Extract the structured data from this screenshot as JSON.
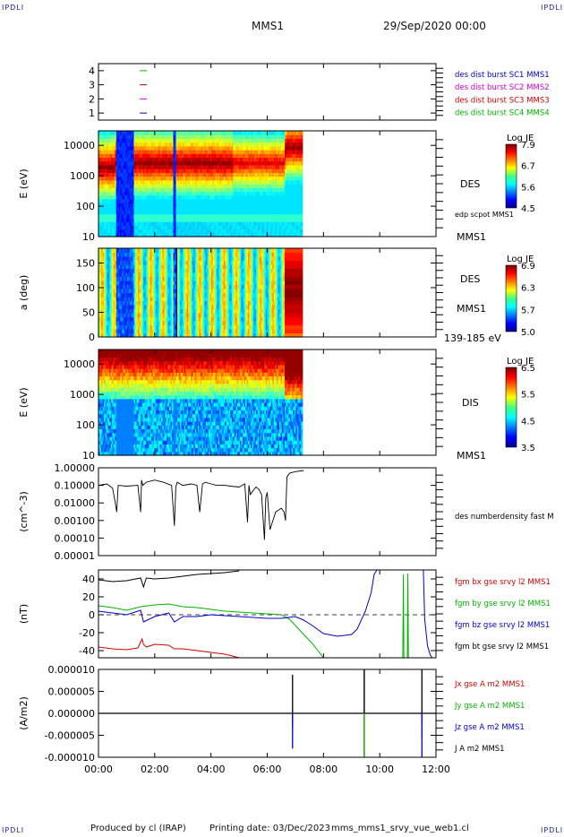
{
  "corner_labels": [
    "IPDLI",
    "IPDLI",
    "IPDLI",
    "IPDLI"
  ],
  "header": {
    "spacecraft": "MMS1",
    "date": "29/Sep/2020 00:00"
  },
  "footer": {
    "produced": "Produced by cl (IRAP)",
    "printed": "Printing date: 03/Dec/2023",
    "file": "mms_mms1_srvy_vue_web1.cl"
  },
  "time_axis": {
    "labels": [
      "00:00",
      "02:00",
      "04:00",
      "06:00",
      "08:00",
      "10:00",
      "12:00"
    ],
    "start_h": 0,
    "end_h": 12
  },
  "colors": {
    "red": "#d40000",
    "green": "#00b400",
    "blue": "#0000cc",
    "magenta": "#d400d4",
    "black": "#000000",
    "dashed": "#000000"
  },
  "chart_data": [
    {
      "type": "scatter",
      "panel": "burst",
      "ylim": [
        0.5,
        4.5
      ],
      "yticks": [
        "1",
        "2",
        "3",
        "4"
      ],
      "legend": [
        "des dist burst SC1 MMS1",
        "des dist burst SC2 MMS2",
        "des dist burst SC3 MMS3",
        "des dist burst SC4 MMS4"
      ],
      "legend_colors": [
        "#0000cc",
        "#d400d4",
        "#d40000",
        "#00b400"
      ],
      "series": [
        {
          "color": "#0000cc",
          "values": [
            {
              "x0": 1.47,
              "x1": 1.72,
              "y": 1
            }
          ]
        },
        {
          "color": "#d400d4",
          "values": [
            {
              "x0": 1.47,
              "x1": 1.72,
              "y": 2
            }
          ]
        },
        {
          "color": "#d40000",
          "values": [
            {
              "x0": 1.47,
              "x1": 1.72,
              "y": 3
            }
          ]
        },
        {
          "color": "#00b400",
          "values": [
            {
              "x0": 1.47,
              "x1": 1.72,
              "y": 4
            }
          ]
        }
      ]
    },
    {
      "type": "heatmap",
      "panel": "des_energy",
      "ylabel": "E (eV)",
      "yscale": "log",
      "ylim": [
        10,
        30000
      ],
      "yticks": [
        "10",
        "100",
        "1000",
        "10000"
      ],
      "right_labels": [
        "DES",
        "edp scpot MMS1",
        "MMS1"
      ],
      "colorbar": {
        "title": "Log JE",
        "ticks": [
          "7.9",
          "6.7",
          "5.6",
          "4.5"
        ],
        "min": 4.5,
        "max": 7.9
      },
      "data_x_range": [
        0,
        7.25
      ]
    },
    {
      "type": "heatmap",
      "panel": "des_pitch",
      "ylabel": "a (deg)",
      "ylim": [
        0,
        180
      ],
      "yticks": [
        "0",
        "50",
        "100",
        "150"
      ],
      "right_labels": [
        "DES",
        "MMS1",
        "139-185 eV"
      ],
      "colorbar": {
        "title": "Log JE",
        "ticks": [
          "6.9",
          "6.3",
          "5.7",
          "5.0"
        ],
        "min": 5.0,
        "max": 6.9
      },
      "data_x_range": [
        0,
        7.25
      ]
    },
    {
      "type": "heatmap",
      "panel": "dis_energy",
      "ylabel": "E (eV)",
      "yscale": "log",
      "ylim": [
        10,
        30000
      ],
      "yticks": [
        "10",
        "100",
        "1000",
        "10000"
      ],
      "right_labels": [
        "DIS",
        "MMS1"
      ],
      "colorbar": {
        "title": "Log JE",
        "ticks": [
          "6.5",
          "5.5",
          "4.5",
          "3.5"
        ],
        "min": 3.5,
        "max": 6.5
      },
      "data_x_range": [
        0,
        7.25
      ]
    },
    {
      "type": "line",
      "panel": "density",
      "ylabel": "(cm^-3)",
      "yscale": "log",
      "ylim": [
        1e-05,
        1.0
      ],
      "yticks": [
        "0.00001",
        "0.00010",
        "0.00100",
        "0.01000",
        "0.10000",
        "1.00000"
      ],
      "right_labels": [
        "des numberdensity fast M"
      ],
      "series": [
        {
          "name": "des numberdensity fast M",
          "color": "#000000",
          "x": [
            0,
            0.3,
            0.5,
            0.6,
            0.65,
            0.7,
            1.0,
            1.4,
            1.5,
            1.53,
            1.58,
            1.7,
            2.0,
            2.3,
            2.6,
            2.7,
            2.75,
            2.8,
            2.9,
            3.0,
            3.3,
            3.5,
            3.6,
            3.7,
            3.8,
            4.0,
            4.2,
            4.5,
            4.7,
            5.0,
            5.2,
            5.3,
            5.35,
            5.4,
            5.5,
            5.6,
            5.7,
            5.8,
            5.9,
            5.95,
            6.0,
            6.1,
            6.3,
            6.5,
            6.6,
            6.65,
            6.7,
            6.8,
            7.0,
            7.3
          ],
          "values": [
            0.1,
            0.12,
            0.07,
            0.01,
            0.003,
            0.1,
            0.09,
            0.1,
            0.003,
            0.2,
            0.1,
            0.15,
            0.2,
            0.15,
            0.1,
            0.0005,
            0.08,
            0.15,
            0.12,
            0.1,
            0.12,
            0.1,
            0.003,
            0.12,
            0.15,
            0.12,
            0.1,
            0.1,
            0.09,
            0.08,
            0.12,
            0.0008,
            0.1,
            0.03,
            0.05,
            0.08,
            0.06,
            0.03,
            8e-05,
            0.02,
            0.04,
            0.0003,
            0.003,
            0.005,
            0.003,
            0.001,
            0.3,
            0.5,
            0.6,
            0.7
          ]
        }
      ]
    },
    {
      "type": "line",
      "panel": "b_field",
      "ylabel": "(nT)",
      "ylim": [
        -48,
        50
      ],
      "yticks": [
        "-40",
        "-20",
        "0",
        "20",
        "40"
      ],
      "right_labels": [
        "fgm bx gse srvy l2 MMS1",
        "fgm by gse srvy l2 MMS1",
        "fgm bz gse srvy l2 MMS1",
        "fgm bt gse srvy l2 MMS1"
      ],
      "right_colors": [
        "#d40000",
        "#00b400",
        "#0000cc",
        "#000000"
      ],
      "series": [
        {
          "name": "bx",
          "color": "#d40000",
          "x": [
            0,
            0.5,
            1,
            1.4,
            1.55,
            1.6,
            1.7,
            2,
            2.5,
            2.7,
            3,
            3.5,
            4,
            4.5,
            5
          ],
          "values": [
            -36,
            -38,
            -39,
            -37,
            -27,
            -33,
            -36,
            -33,
            -34,
            -38,
            -38,
            -40,
            -42,
            -44,
            -48
          ]
        },
        {
          "name": "by",
          "color": "#00b400",
          "x": [
            0,
            0.5,
            1,
            1.5,
            2,
            2.5,
            3,
            3.5,
            4,
            4.5,
            5,
            5.5,
            6,
            6.5,
            6.8,
            7,
            7.3,
            7.6,
            7.8,
            8,
            10.82,
            10.84,
            10.86,
            10.98,
            11,
            11.02,
            11.05,
            11.5
          ],
          "values": [
            10,
            8,
            5,
            9,
            11,
            12,
            9,
            8,
            6,
            4,
            3,
            2,
            1,
            0,
            -5,
            -12,
            -22,
            -32,
            -40,
            -48,
            -48,
            45,
            -48,
            -48,
            46,
            -48,
            -48,
            -48
          ]
        },
        {
          "name": "bz",
          "color": "#0000cc",
          "x": [
            0,
            0.5,
            1,
            1.5,
            1.6,
            2,
            2.5,
            2.7,
            3,
            3.5,
            4,
            4.5,
            5,
            5.5,
            6,
            6.5,
            7,
            7.3,
            7.6,
            8,
            8.5,
            9,
            9.2,
            9.5,
            9.7,
            9.8,
            9.9,
            10.0,
            11.55,
            11.6,
            11.65,
            11.7,
            11.8,
            11.9
          ],
          "values": [
            4,
            2,
            0,
            5,
            -8,
            -2,
            2,
            -8,
            -2,
            -2,
            0,
            -1,
            -2,
            -3,
            -4,
            -4,
            -2,
            -6,
            -12,
            -21,
            -24,
            -22,
            -16,
            5,
            25,
            45,
            50,
            50,
            50,
            -5,
            -20,
            -35,
            -45,
            -50
          ]
        },
        {
          "name": "bt",
          "color": "#000000",
          "x": [
            0,
            0.5,
            1,
            1.5,
            1.6,
            1.7,
            2,
            2.5,
            3,
            3.5,
            4,
            4.5,
            5
          ],
          "values": [
            39,
            37,
            38,
            41,
            31,
            41,
            40,
            41,
            43,
            45,
            46,
            47,
            49
          ]
        }
      ],
      "zero_line": 0
    },
    {
      "type": "line",
      "panel": "current",
      "ylabel": "(A/m2)",
      "ylim": [
        -1e-05,
        1e-05
      ],
      "yticks": [
        "-0.000010",
        "-0.000005",
        "0.000000",
        "0.000005",
        "0.000010"
      ],
      "right_labels": [
        "Jx gse A m2 MMS1",
        "Jy gse A m2 MMS1",
        "Jz gse A m2 MMS1",
        "J A m2 MMS1"
      ],
      "right_colors": [
        "#d40000",
        "#00b400",
        "#0000cc",
        "#000000"
      ],
      "spikes": [
        {
          "x": 6.9,
          "black": 8.8e-06,
          "blue": -8e-06,
          "green": -3.5e-06,
          "red": -2e-06
        },
        {
          "x": 9.45,
          "black": 1e-05,
          "blue": 1e-05,
          "green": -1e-05,
          "red": -1e-05
        },
        {
          "x": 11.5,
          "black": 1e-05,
          "blue": -1e-05,
          "green": -5.5e-06,
          "red": -2e-06
        }
      ]
    }
  ]
}
